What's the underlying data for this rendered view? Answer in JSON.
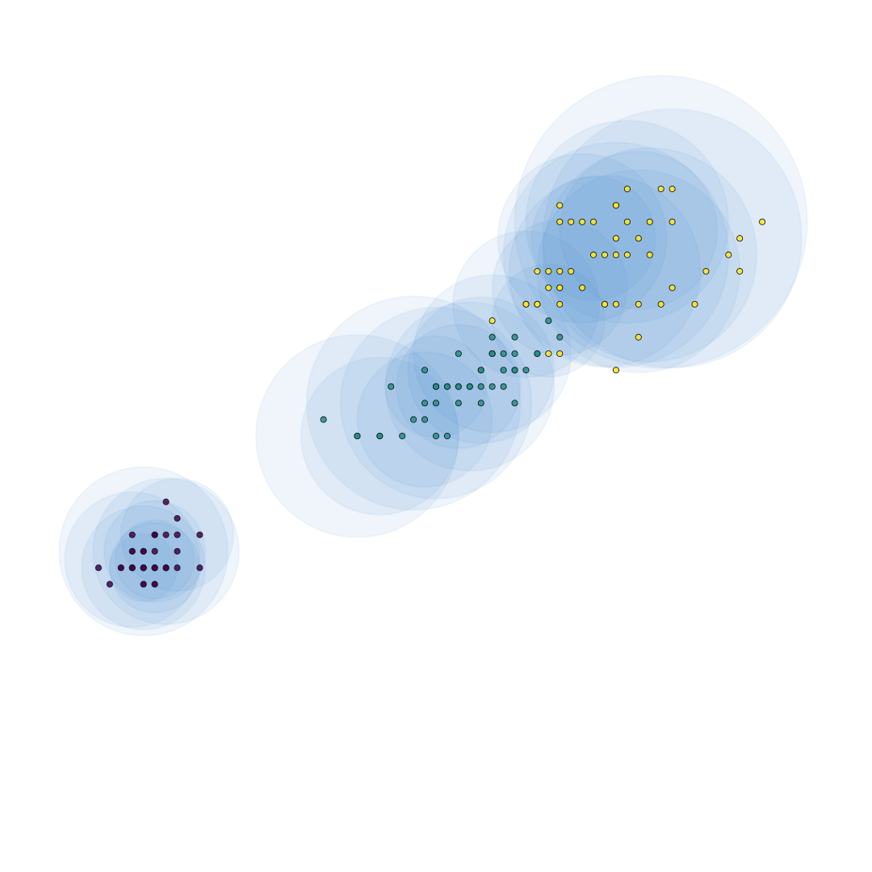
{
  "chart_data": {
    "type": "scatter",
    "title": "",
    "xlabel": "",
    "ylabel": "",
    "axes_visible": false,
    "grid": false,
    "legend": "none",
    "xlim": [
      1.0,
      7.0
    ],
    "ylim": [
      -1.0,
      3.0
    ],
    "halo_color": "#4a8bd0",
    "halo_opacity": 0.09,
    "halo_edge_opacity": 0.35,
    "point_colors": {
      "class0": "#440154",
      "class1": "#21918c",
      "class2": "#fde725"
    },
    "halos": [
      {
        "cx": 1.4,
        "cy": 0.2,
        "r": 0.55
      },
      {
        "cx": 1.5,
        "cy": 0.3,
        "r": 0.45
      },
      {
        "cx": 1.6,
        "cy": 0.3,
        "r": 0.65
      },
      {
        "cx": 1.5,
        "cy": 0.2,
        "r": 0.4
      },
      {
        "cx": 1.3,
        "cy": 0.25,
        "r": 0.6
      },
      {
        "cx": 1.4,
        "cy": 0.3,
        "r": 0.75
      },
      {
        "cx": 1.7,
        "cy": 0.4,
        "r": 0.5
      },
      {
        "cx": 1.5,
        "cy": 0.25,
        "r": 0.35
      },
      {
        "cx": 1.4,
        "cy": 0.2,
        "r": 0.3
      },
      {
        "cx": 3.5,
        "cy": 1.0,
        "r": 0.7
      },
      {
        "cx": 4.0,
        "cy": 1.2,
        "r": 0.85
      },
      {
        "cx": 4.3,
        "cy": 1.3,
        "r": 0.75
      },
      {
        "cx": 3.9,
        "cy": 1.1,
        "r": 0.6
      },
      {
        "cx": 4.5,
        "cy": 1.5,
        "r": 0.7
      },
      {
        "cx": 4.2,
        "cy": 1.3,
        "r": 0.55
      },
      {
        "cx": 3.8,
        "cy": 1.2,
        "r": 0.95
      },
      {
        "cx": 3.3,
        "cy": 1.0,
        "r": 0.9
      },
      {
        "cx": 4.4,
        "cy": 1.4,
        "r": 0.65
      },
      {
        "cx": 4.0,
        "cy": 1.3,
        "r": 0.45
      },
      {
        "cx": 5.7,
        "cy": 2.3,
        "r": 0.9
      },
      {
        "cx": 5.6,
        "cy": 2.1,
        "r": 1.0
      },
      {
        "cx": 5.8,
        "cy": 2.0,
        "r": 0.9
      },
      {
        "cx": 6.1,
        "cy": 2.2,
        "r": 1.15
      },
      {
        "cx": 5.3,
        "cy": 2.2,
        "r": 0.75
      },
      {
        "cx": 5.1,
        "cy": 1.9,
        "r": 0.6
      },
      {
        "cx": 6.0,
        "cy": 2.3,
        "r": 1.3
      },
      {
        "cx": 5.5,
        "cy": 2.0,
        "r": 0.85
      },
      {
        "cx": 5.8,
        "cy": 2.25,
        "r": 0.7
      },
      {
        "cx": 5.4,
        "cy": 2.2,
        "r": 0.55
      },
      {
        "cx": 4.8,
        "cy": 1.8,
        "r": 0.65
      },
      {
        "cx": 5.0,
        "cy": 1.7,
        "r": 0.5
      },
      {
        "cx": 5.9,
        "cy": 2.1,
        "r": 0.95
      }
    ],
    "series": [
      {
        "class": "class0",
        "points": [
          [
            1.4,
            0.2
          ],
          [
            1.4,
            0.2
          ],
          [
            1.3,
            0.2
          ],
          [
            1.5,
            0.2
          ],
          [
            1.4,
            0.2
          ],
          [
            1.7,
            0.4
          ],
          [
            1.4,
            0.3
          ],
          [
            1.5,
            0.2
          ],
          [
            1.4,
            0.2
          ],
          [
            1.5,
            0.1
          ],
          [
            1.5,
            0.2
          ],
          [
            1.6,
            0.2
          ],
          [
            1.4,
            0.1
          ],
          [
            1.1,
            0.1
          ],
          [
            1.2,
            0.2
          ],
          [
            1.5,
            0.4
          ],
          [
            1.3,
            0.4
          ],
          [
            1.4,
            0.3
          ],
          [
            1.7,
            0.3
          ],
          [
            1.5,
            0.3
          ],
          [
            1.7,
            0.2
          ],
          [
            1.5,
            0.4
          ],
          [
            1.0,
            0.2
          ],
          [
            1.7,
            0.5
          ],
          [
            1.9,
            0.2
          ],
          [
            1.6,
            0.2
          ],
          [
            1.6,
            0.4
          ],
          [
            1.5,
            0.2
          ],
          [
            1.4,
            0.2
          ],
          [
            1.6,
            0.2
          ],
          [
            1.6,
            0.2
          ],
          [
            1.5,
            0.4
          ],
          [
            1.5,
            0.1
          ],
          [
            1.4,
            0.2
          ],
          [
            1.5,
            0.2
          ],
          [
            1.2,
            0.2
          ],
          [
            1.3,
            0.2
          ],
          [
            1.4,
            0.1
          ],
          [
            1.3,
            0.2
          ],
          [
            1.5,
            0.2
          ],
          [
            1.3,
            0.3
          ],
          [
            1.3,
            0.3
          ],
          [
            1.3,
            0.2
          ],
          [
            1.6,
            0.6
          ],
          [
            1.9,
            0.4
          ],
          [
            1.4,
            0.3
          ],
          [
            1.6,
            0.2
          ],
          [
            1.4,
            0.2
          ],
          [
            1.5,
            0.2
          ],
          [
            1.4,
            0.2
          ]
        ]
      },
      {
        "class": "class1",
        "points": [
          [
            4.7,
            1.4
          ],
          [
            4.5,
            1.5
          ],
          [
            4.9,
            1.5
          ],
          [
            4.0,
            1.3
          ],
          [
            4.6,
            1.5
          ],
          [
            4.5,
            1.3
          ],
          [
            4.7,
            1.6
          ],
          [
            3.3,
            1.0
          ],
          [
            4.6,
            1.3
          ],
          [
            3.9,
            1.4
          ],
          [
            3.5,
            1.0
          ],
          [
            4.2,
            1.5
          ],
          [
            4.0,
            1.0
          ],
          [
            4.7,
            1.4
          ],
          [
            3.6,
            1.3
          ],
          [
            4.4,
            1.4
          ],
          [
            4.5,
            1.5
          ],
          [
            4.1,
            1.0
          ],
          [
            4.5,
            1.5
          ],
          [
            3.9,
            1.1
          ],
          [
            4.8,
            1.8
          ],
          [
            4.0,
            1.3
          ],
          [
            4.9,
            1.5
          ],
          [
            4.7,
            1.2
          ],
          [
            4.3,
            1.3
          ],
          [
            4.4,
            1.4
          ],
          [
            4.8,
            1.4
          ],
          [
            5.0,
            1.7
          ],
          [
            4.5,
            1.5
          ],
          [
            3.5,
            1.0
          ],
          [
            3.8,
            1.1
          ],
          [
            3.7,
            1.0
          ],
          [
            3.9,
            1.2
          ],
          [
            5.1,
            1.6
          ],
          [
            4.5,
            1.5
          ],
          [
            4.5,
            1.6
          ],
          [
            4.7,
            1.5
          ],
          [
            4.4,
            1.3
          ],
          [
            4.1,
            1.3
          ],
          [
            4.0,
            1.3
          ],
          [
            4.4,
            1.2
          ],
          [
            4.6,
            1.4
          ],
          [
            4.0,
            1.2
          ],
          [
            3.3,
            1.0
          ],
          [
            4.2,
            1.3
          ],
          [
            4.2,
            1.2
          ],
          [
            4.2,
            1.3
          ],
          [
            4.3,
            1.3
          ],
          [
            3.0,
            1.1
          ],
          [
            4.1,
            1.3
          ]
        ]
      },
      {
        "class": "class2",
        "points": [
          [
            6.0,
            2.5
          ],
          [
            5.1,
            1.9
          ],
          [
            5.9,
            2.1
          ],
          [
            5.6,
            1.8
          ],
          [
            5.8,
            2.2
          ],
          [
            6.6,
            2.1
          ],
          [
            4.5,
            1.7
          ],
          [
            6.3,
            1.8
          ],
          [
            5.8,
            1.8
          ],
          [
            6.1,
            2.5
          ],
          [
            5.1,
            2.0
          ],
          [
            5.3,
            1.9
          ],
          [
            5.5,
            2.1
          ],
          [
            5.0,
            2.0
          ],
          [
            5.1,
            2.4
          ],
          [
            5.3,
            2.3
          ],
          [
            5.5,
            1.8
          ],
          [
            6.7,
            2.2
          ],
          [
            6.9,
            2.3
          ],
          [
            5.0,
            1.5
          ],
          [
            5.7,
            2.3
          ],
          [
            4.9,
            2.0
          ],
          [
            6.7,
            2.0
          ],
          [
            4.9,
            1.8
          ],
          [
            5.7,
            2.1
          ],
          [
            6.0,
            1.8
          ],
          [
            4.8,
            1.8
          ],
          [
            4.9,
            1.8
          ],
          [
            5.6,
            2.1
          ],
          [
            5.8,
            1.6
          ],
          [
            6.1,
            1.9
          ],
          [
            6.4,
            2.0
          ],
          [
            5.6,
            2.2
          ],
          [
            5.1,
            1.5
          ],
          [
            5.6,
            1.4
          ],
          [
            6.1,
            2.3
          ],
          [
            5.6,
            2.4
          ],
          [
            5.5,
            1.8
          ],
          [
            4.8,
            1.8
          ],
          [
            5.4,
            2.1
          ],
          [
            5.6,
            2.4
          ],
          [
            5.1,
            2.3
          ],
          [
            5.1,
            1.9
          ],
          [
            5.9,
            2.3
          ],
          [
            5.7,
            2.5
          ],
          [
            5.2,
            2.3
          ],
          [
            5.0,
            1.9
          ],
          [
            5.2,
            2.0
          ],
          [
            5.4,
            2.3
          ],
          [
            5.1,
            1.8
          ]
        ]
      }
    ]
  }
}
